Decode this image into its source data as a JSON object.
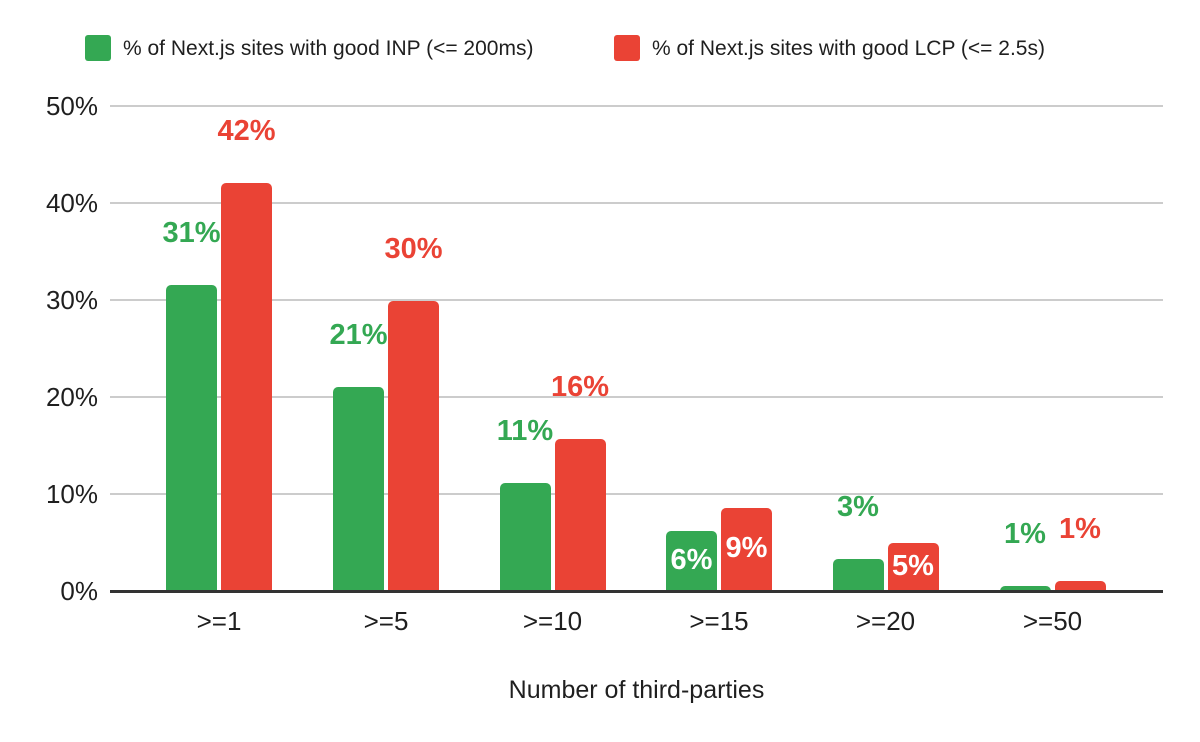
{
  "chart_data": {
    "type": "bar",
    "title": "",
    "xlabel": "Number of third-parties",
    "ylabel": "",
    "categories": [
      ">=1",
      ">=5",
      ">=10",
      ">=15",
      ">=20",
      ">=50"
    ],
    "series": [
      {
        "name": "% of Next.js sites with good INP (<= 200ms)",
        "color": "#34a853",
        "values": [
          31,
          21,
          11,
          6,
          3,
          1
        ],
        "labels": [
          "31%",
          "21%",
          "11%",
          "6%",
          "3%",
          "1%"
        ],
        "bar_heights_pct": [
          31.5,
          21.0,
          11.1,
          6.2,
          3.3,
          0.5
        ],
        "label_placement": [
          "above",
          "above",
          "above",
          "inside",
          "above",
          "above"
        ]
      },
      {
        "name": "% of Next.js sites with good LCP (<= 2.5s)",
        "color": "#ea4335",
        "values": [
          42,
          30,
          16,
          9,
          5,
          1
        ],
        "labels": [
          "42%",
          "30%",
          "16%",
          "9%",
          "5%",
          "1%"
        ],
        "bar_heights_pct": [
          42.1,
          29.9,
          15.7,
          8.6,
          5.0,
          1.0
        ],
        "label_placement": [
          "above",
          "above",
          "above",
          "inside",
          "inside",
          "above"
        ]
      }
    ],
    "ylim": [
      0,
      50
    ],
    "y_ticks": [
      "0%",
      "10%",
      "20%",
      "30%",
      "40%",
      "50%"
    ],
    "y_tick_values": [
      0,
      10,
      20,
      30,
      40,
      50
    ],
    "grid": true,
    "legend_position": "top",
    "inside_label_color": "#ffffff"
  },
  "colors": {
    "background": "#ffffff",
    "gridline": "#cccccc",
    "axis_line": "#333333",
    "tick_text": "#1f1f1f"
  }
}
